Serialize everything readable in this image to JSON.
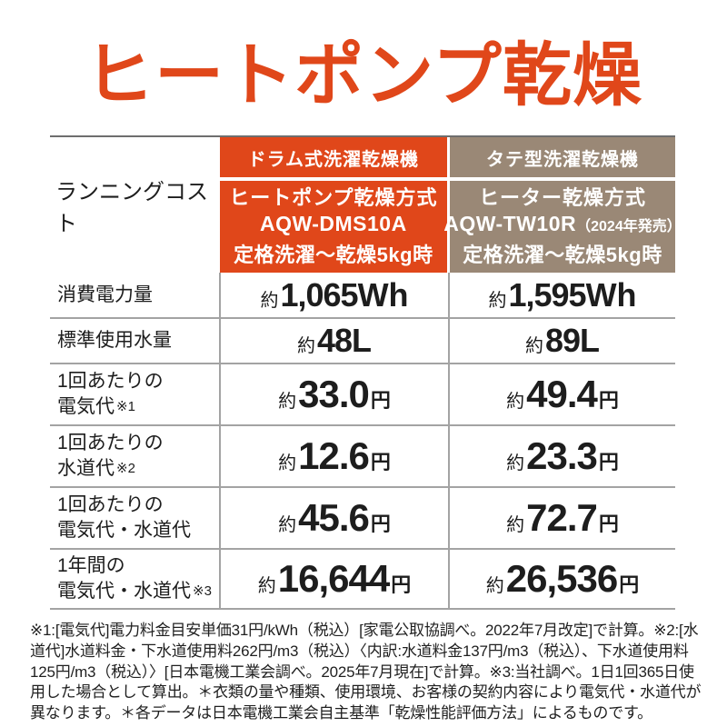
{
  "title": "ヒートポンプ乾燥",
  "colors": {
    "accent": "#e0471a",
    "taupe": "#9a8876",
    "line": "#a3a3a3",
    "line_dark": "#6e6e6e",
    "text": "#1d1d1d",
    "header_text": "#ffffff"
  },
  "table": {
    "corner_label": "ランニングコスト",
    "columns": [
      {
        "type_label": "ドラム式洗濯乾燥機",
        "method": "ヒートポンプ乾燥方式",
        "model": "AQW-DMS10A",
        "model_note": "",
        "condition": "定格洗濯～乾燥5kg時"
      },
      {
        "type_label": "タテ型洗濯乾燥機",
        "method": "ヒーター乾燥方式",
        "model": "AQW-TW10R",
        "model_note": "（2024年発売）",
        "condition": "定格洗濯～乾燥5kg時"
      }
    ],
    "rows": [
      {
        "label1": "消費電力量",
        "label2": "",
        "note": "",
        "values": [
          {
            "approx": "約",
            "num": "1,065",
            "unit": "Wh"
          },
          {
            "approx": "約",
            "num": "1,595",
            "unit": "Wh"
          }
        ]
      },
      {
        "label1": "標準使用水量",
        "label2": "",
        "note": "",
        "values": [
          {
            "approx": "約",
            "num": "48",
            "unit": "L"
          },
          {
            "approx": "約",
            "num": "89",
            "unit": "L"
          }
        ]
      },
      {
        "label1": "1回あたりの",
        "label2": "電気代",
        "note": "※1",
        "values": [
          {
            "approx": "約",
            "num": "33.0",
            "unit": "円"
          },
          {
            "approx": "約",
            "num": "49.4",
            "unit": "円"
          }
        ]
      },
      {
        "label1": "1回あたりの",
        "label2": "水道代",
        "note": "※2",
        "values": [
          {
            "approx": "約",
            "num": "12.6",
            "unit": "円"
          },
          {
            "approx": "約",
            "num": "23.3",
            "unit": "円"
          }
        ]
      },
      {
        "label1": "1回あたりの",
        "label2": "電気代・水道代",
        "note": "",
        "values": [
          {
            "approx": "約",
            "num": "45.6",
            "unit": "円"
          },
          {
            "approx": "約",
            "num": "72.7",
            "unit": "円"
          }
        ]
      },
      {
        "label1": "1年間の",
        "label2": "電気代・水道代",
        "note": "※3",
        "values": [
          {
            "approx": "約",
            "num": "16,644",
            "unit": "円"
          },
          {
            "approx": "約",
            "num": "26,536",
            "unit": "円"
          }
        ]
      }
    ]
  },
  "footnote": "※1:[電気代]電力料金目安単価31円/kWh（税込）[家電公取協調べ。2022年7月改定]で計算。※2:[水道代]水道料金・下水道使用料262円/m3（税込）〈内訳:水道料金137円/m3（税込）、下水道使用料125円/m3（税込）〉[日本電機工業会調べ。2025年7月現在]で計算。※3:当社調べ。1日1回365日使用した場合として算出。＊衣類の量や種類、使用環境、お客様の契約内容により電気代・水道代が異なります。＊各データは日本電機工業会自主基準「乾燥性能評価方法」によるものです。",
  "chart_data": {
    "type": "table",
    "title": "ヒートポンプ乾燥",
    "row_header": "ランニングコスト",
    "columns": [
      "ドラム式洗濯乾燥機 ヒートポンプ乾燥方式 AQW-DMS10A 定格洗濯～乾燥5kg時",
      "タテ型洗濯乾燥機 ヒーター乾燥方式 AQW-TW10R（2024年発売） 定格洗濯～乾燥5kg時"
    ],
    "rows": [
      {
        "label": "消費電力量",
        "values": [
          "約1,065Wh",
          "約1,595Wh"
        ]
      },
      {
        "label": "標準使用水量",
        "values": [
          "約48L",
          "約89L"
        ]
      },
      {
        "label": "1回あたりの電気代※1",
        "values": [
          "約33.0円",
          "約49.4円"
        ]
      },
      {
        "label": "1回あたりの水道代※2",
        "values": [
          "約12.6円",
          "約23.3円"
        ]
      },
      {
        "label": "1回あたりの電気代・水道代",
        "values": [
          "約45.6円",
          "約72.7円"
        ]
      },
      {
        "label": "1年間の電気代・水道代※3",
        "values": [
          "約16,644円",
          "約26,536円"
        ]
      }
    ]
  }
}
